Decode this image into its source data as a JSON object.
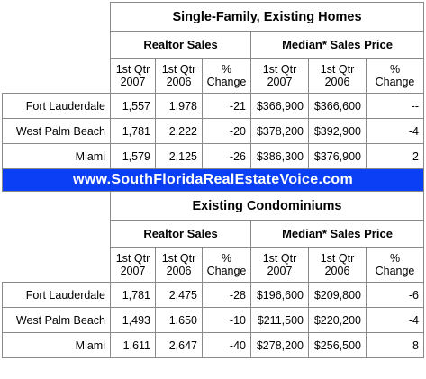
{
  "sections": [
    {
      "title": "Single-Family, Existing Homes",
      "groups": [
        "Realtor Sales",
        "Median* Sales Price"
      ],
      "columns": [
        [
          "1st Qtr",
          "2007"
        ],
        [
          "1st Qtr",
          "2006"
        ],
        [
          "%",
          "Change"
        ],
        [
          "1st Qtr",
          "2007"
        ],
        [
          "1st Qtr",
          "2006"
        ],
        [
          "%",
          "Change"
        ]
      ],
      "rows": [
        [
          "Fort Lauderdale",
          "1,557",
          "1,978",
          "-21",
          "$366,900",
          "$366,600",
          "--"
        ],
        [
          "West Palm Beach",
          "1,781",
          "2,222",
          "-20",
          "$378,200",
          "$392,900",
          "-4"
        ],
        [
          "Miami",
          "1,579",
          "2,125",
          "-26",
          "$386,300",
          "$376,900",
          "2"
        ]
      ]
    },
    {
      "title": "Existing Condominiums",
      "groups": [
        "Realtor Sales",
        "Median* Sales Price"
      ],
      "columns": [
        [
          "1st Qtr",
          "2007"
        ],
        [
          "1st Qtr",
          "2006"
        ],
        [
          "%",
          "Change"
        ],
        [
          "1st Qtr",
          "2007"
        ],
        [
          "1st Qtr",
          "2006"
        ],
        [
          "%",
          "Change"
        ]
      ],
      "rows": [
        [
          "Fort Lauderdale",
          "1,781",
          "2,475",
          "-28",
          "$196,600",
          "$209,800",
          "-6"
        ],
        [
          "West Palm Beach",
          "1,493",
          "1,650",
          "-10",
          "$211,500",
          "$220,200",
          "-4"
        ],
        [
          "Miami",
          "1,611",
          "2,647",
          "-40",
          "$278,200",
          "$256,500",
          "8"
        ]
      ]
    }
  ],
  "banner": "www.SouthFloridaRealEstateVoice.com",
  "colors": {
    "banner_bg": "#0b3ff5",
    "banner_text": "#ffffff",
    "grid": "#8a8a8a"
  }
}
